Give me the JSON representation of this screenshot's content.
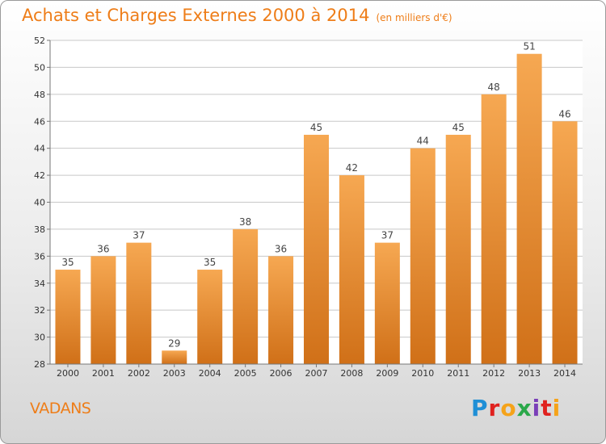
{
  "header": {
    "title": "Achats et Charges Externes 2000 à 2014",
    "subtitle": "(en milliers d'€)"
  },
  "footer": {
    "place": "VADANS",
    "logo_text": "Proxiti",
    "logo_colors": [
      "#1f8fd6",
      "#e0221f",
      "#f5a31a",
      "#2aa84a",
      "#7a3fb8",
      "#e0221f",
      "#f5a31a"
    ]
  },
  "colors": {
    "bar_top": "#f6a852",
    "bar_bottom": "#d07018",
    "accent": "#ee7d18"
  },
  "chart_data": {
    "type": "bar",
    "categories": [
      "2000",
      "2001",
      "2002",
      "2003",
      "2004",
      "2005",
      "2006",
      "2007",
      "2008",
      "2009",
      "2010",
      "2011",
      "2012",
      "2013",
      "2014"
    ],
    "values": [
      35,
      36,
      37,
      29,
      35,
      38,
      36,
      45,
      42,
      37,
      44,
      45,
      48,
      51,
      46
    ],
    "ylim": [
      28,
      52
    ],
    "yticks": [
      28,
      30,
      32,
      34,
      36,
      38,
      40,
      42,
      44,
      46,
      48,
      50,
      52
    ],
    "grid": true,
    "title": "Achats et Charges Externes 2000 à 2014",
    "xlabel": "",
    "ylabel": ""
  }
}
